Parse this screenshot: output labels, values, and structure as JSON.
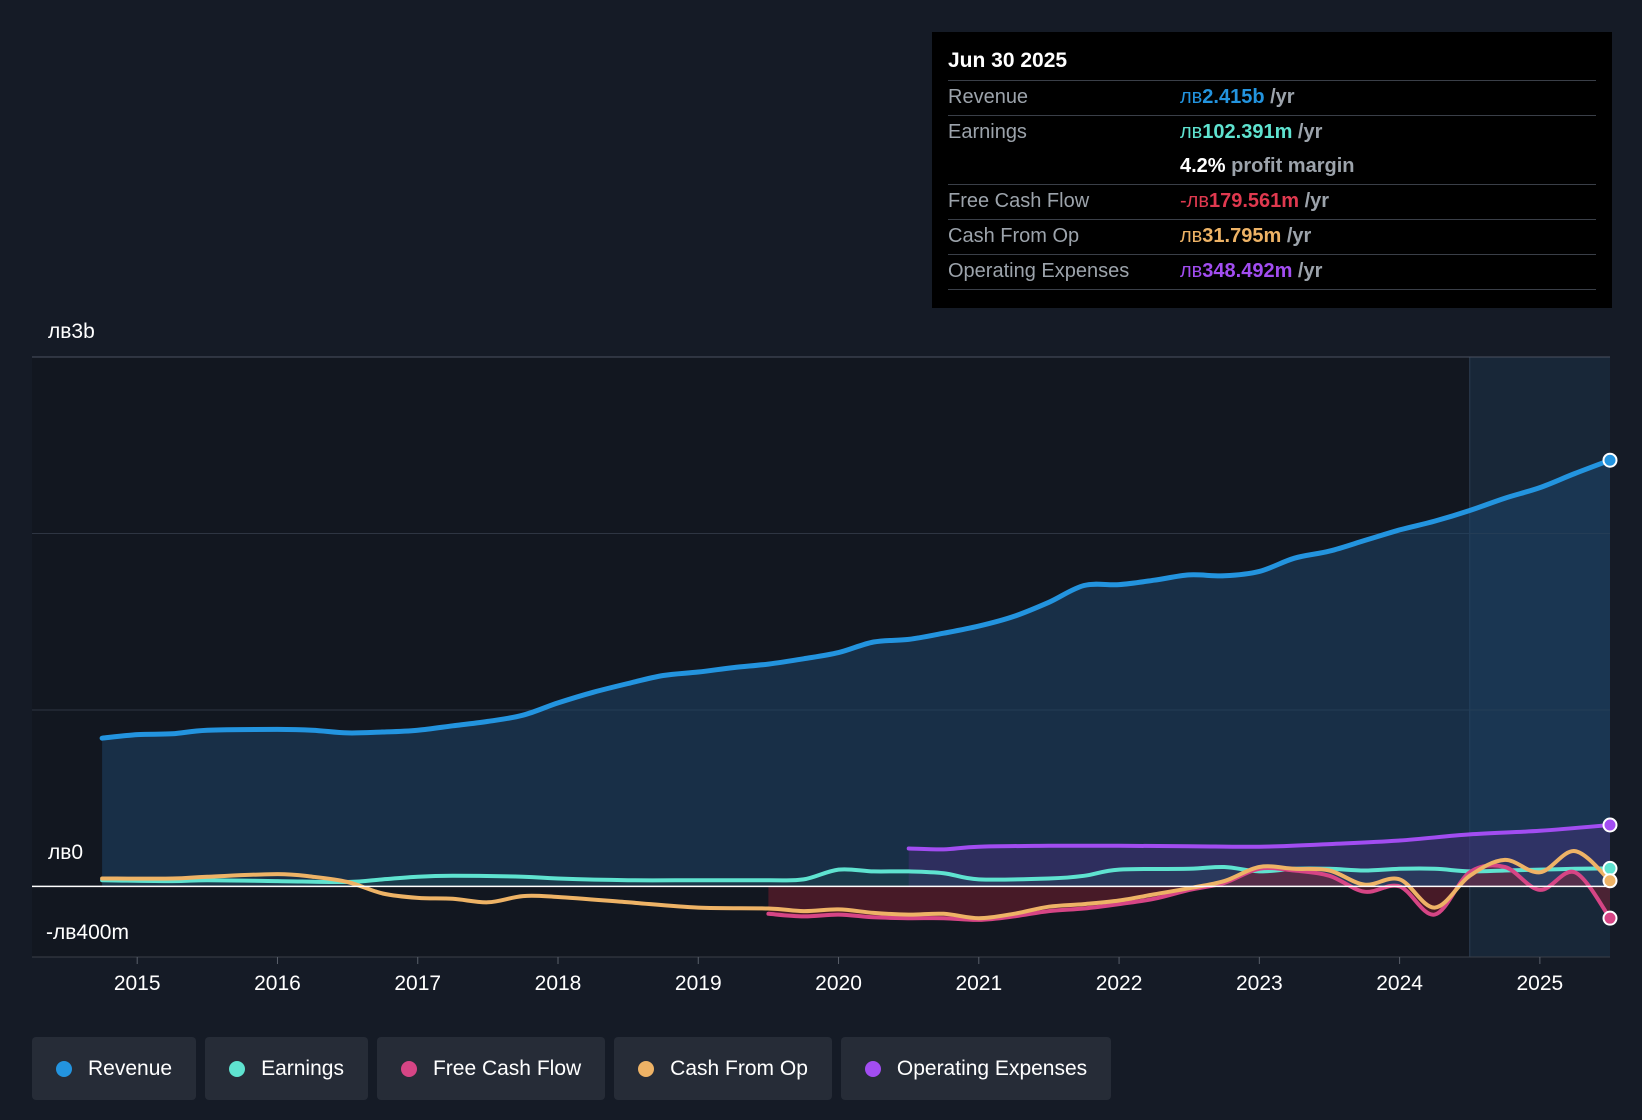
{
  "tooltip": {
    "date": "Jun 30 2025",
    "rows": [
      {
        "label": "Revenue",
        "prefix": "лв",
        "value": "2.415b",
        "unit": " /yr",
        "color": "#2394df"
      },
      {
        "label": "Earnings",
        "prefix": "лв",
        "value": "102.391m",
        "unit": " /yr",
        "color": "#5fe3d0"
      },
      {
        "label": "",
        "prefix": "",
        "value": "4.2%",
        "unit": " profit margin",
        "color": "#ffffff"
      },
      {
        "label": "Free Cash Flow",
        "prefix": "-лв",
        "value": "179.561m",
        "unit": " /yr",
        "color": "#e0394f"
      },
      {
        "label": "Cash From Op",
        "prefix": "лв",
        "value": "31.795m",
        "unit": " /yr",
        "color": "#eeb366"
      },
      {
        "label": "Operating Expenses",
        "prefix": "лв",
        "value": "348.492m",
        "unit": " /yr",
        "color": "#a24df1"
      }
    ]
  },
  "legend": [
    {
      "label": "Revenue",
      "color": "#2394df"
    },
    {
      "label": "Earnings",
      "color": "#5fe3d0"
    },
    {
      "label": "Free Cash Flow",
      "color": "#d64585"
    },
    {
      "label": "Cash From Op",
      "color": "#eeb366"
    },
    {
      "label": "Operating Expenses",
      "color": "#a24df1"
    }
  ],
  "chart_data": {
    "type": "line",
    "title": "",
    "y_tick_labels": [
      "лв3b",
      "лв0",
      "-лв400m"
    ],
    "ylim": [
      -400,
      3000
    ],
    "xlim": [
      2014.25,
      2025.5
    ],
    "x_ticks": [
      2015,
      2016,
      2017,
      2018,
      2019,
      2020,
      2021,
      2022,
      2023,
      2024,
      2025
    ],
    "x_tick_labels": [
      "2015",
      "2016",
      "2017",
      "2018",
      "2019",
      "2020",
      "2021",
      "2022",
      "2023",
      "2024",
      "2025"
    ],
    "highlight_start": 2024.5,
    "series": [
      {
        "name": "Revenue",
        "color": "#2394df",
        "fill": true,
        "x": [
          2014.75,
          2015.0,
          2015.25,
          2015.5,
          2016.0,
          2016.25,
          2016.5,
          2016.75,
          2017.0,
          2017.25,
          2017.5,
          2017.75,
          2018.0,
          2018.25,
          2018.5,
          2018.75,
          2019.0,
          2019.25,
          2019.5,
          2019.75,
          2020.0,
          2020.25,
          2020.5,
          2020.75,
          2021.0,
          2021.25,
          2021.5,
          2021.75,
          2022.0,
          2022.25,
          2022.5,
          2022.75,
          2023.0,
          2023.25,
          2023.5,
          2023.75,
          2024.0,
          2024.25,
          2024.5,
          2024.75,
          2025.0,
          2025.25,
          2025.5
        ],
        "values": [
          840,
          860,
          865,
          885,
          890,
          885,
          870,
          875,
          885,
          910,
          935,
          970,
          1040,
          1100,
          1150,
          1195,
          1215,
          1240,
          1260,
          1290,
          1325,
          1385,
          1400,
          1435,
          1475,
          1530,
          1610,
          1705,
          1710,
          1735,
          1765,
          1760,
          1785,
          1860,
          1900,
          1960,
          2020,
          2070,
          2130,
          2200,
          2260,
          2340,
          2415
        ]
      },
      {
        "name": "Earnings",
        "color": "#5fe3d0",
        "x": [
          2014.75,
          2015.25,
          2015.5,
          2016.0,
          2016.5,
          2016.75,
          2017.0,
          2017.25,
          2017.75,
          2018.0,
          2018.5,
          2019.0,
          2019.5,
          2019.75,
          2020.0,
          2020.25,
          2020.5,
          2020.75,
          2021.0,
          2021.5,
          2021.75,
          2022.0,
          2022.5,
          2022.75,
          2023.0,
          2023.25,
          2023.5,
          2023.75,
          2024.0,
          2024.25,
          2024.5,
          2024.75,
          2025.0,
          2025.25,
          2025.5
        ],
        "values": [
          35,
          30,
          35,
          30,
          25,
          40,
          55,
          60,
          55,
          45,
          35,
          35,
          35,
          40,
          95,
          85,
          85,
          75,
          40,
          45,
          60,
          95,
          100,
          110,
          85,
          100,
          100,
          90,
          100,
          100,
          85,
          90,
          95,
          100,
          102
        ]
      },
      {
        "name": "Free Cash Flow",
        "color": "#d64585",
        "x": [
          2019.5,
          2019.75,
          2020.0,
          2020.25,
          2020.5,
          2020.75,
          2021.0,
          2021.25,
          2021.5,
          2021.75,
          2022.0,
          2022.25,
          2022.5,
          2022.75,
          2023.0,
          2023.25,
          2023.5,
          2023.75,
          2024.0,
          2024.25,
          2024.5,
          2024.75,
          2025.0,
          2025.25,
          2025.5
        ],
        "values": [
          -155,
          -170,
          -160,
          -175,
          -180,
          -180,
          -190,
          -170,
          -140,
          -125,
          -100,
          -70,
          -20,
          20,
          100,
          90,
          60,
          -30,
          0,
          -160,
          80,
          110,
          -20,
          80,
          -180
        ]
      },
      {
        "name": "Cash From Op",
        "color": "#eeb366",
        "x": [
          2014.75,
          2015.25,
          2015.5,
          2016.0,
          2016.25,
          2016.5,
          2016.75,
          2017.0,
          2017.25,
          2017.5,
          2017.75,
          2018.0,
          2018.5,
          2019.0,
          2019.5,
          2019.75,
          2020.0,
          2020.25,
          2020.5,
          2020.75,
          2021.0,
          2021.25,
          2021.5,
          2021.75,
          2022.0,
          2022.25,
          2022.5,
          2022.75,
          2023.0,
          2023.25,
          2023.5,
          2023.75,
          2024.0,
          2024.25,
          2024.5,
          2024.75,
          2025.0,
          2025.25,
          2025.5
        ],
        "values": [
          45,
          45,
          55,
          70,
          55,
          25,
          -40,
          -65,
          -70,
          -90,
          -55,
          -60,
          -90,
          -120,
          -125,
          -140,
          -130,
          -150,
          -160,
          -155,
          -180,
          -155,
          -115,
          -100,
          -80,
          -45,
          -10,
          30,
          110,
          100,
          90,
          10,
          40,
          -120,
          60,
          150,
          80,
          200,
          32
        ]
      },
      {
        "name": "Operating Expenses",
        "color": "#a24df1",
        "x": [
          2020.5,
          2020.75,
          2021.0,
          2021.5,
          2022.0,
          2022.5,
          2023.0,
          2023.5,
          2024.0,
          2024.5,
          2025.0,
          2025.5
        ],
        "values": [
          215,
          210,
          225,
          230,
          230,
          228,
          225,
          240,
          260,
          295,
          315,
          348
        ]
      }
    ]
  }
}
